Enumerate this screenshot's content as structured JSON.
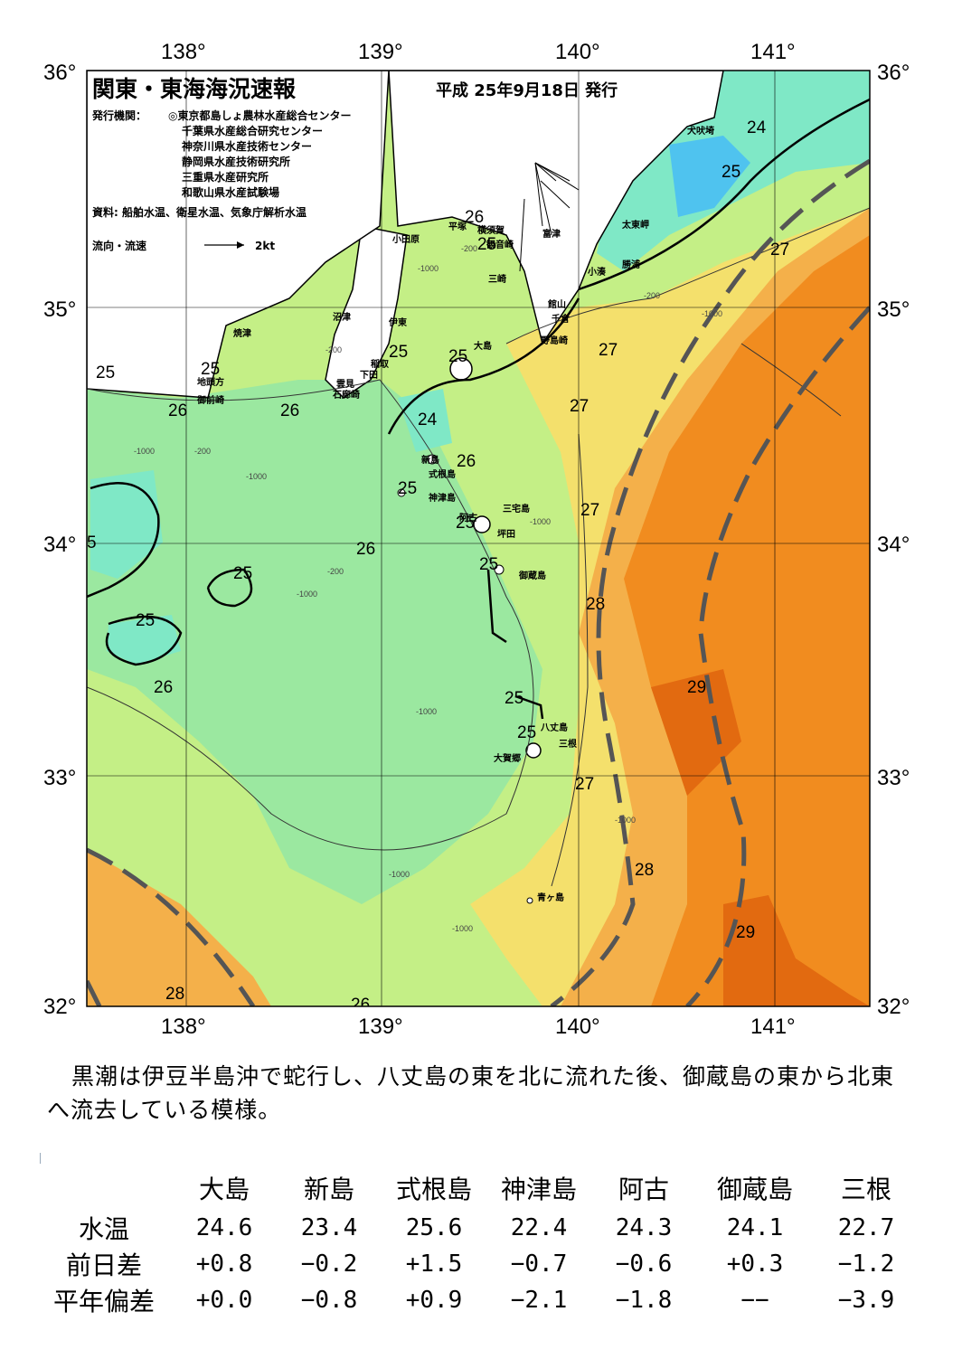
{
  "header": {
    "title": "関東・東海海況速報",
    "date": "平成 25年9月18日 発行",
    "issuer_label": "発行機関：",
    "issuers": [
      "◎東京都島しょ農林水産総合センター",
      "千葉県水産総合研究センター",
      "神奈川県水産技術センター",
      "静岡県水産技術研究所",
      "三重県水産研究所",
      "和歌山県水産試験場"
    ],
    "source": "資料: 船舶水温、衛星水温、気象庁解析水温",
    "legend_label": "流向・流速",
    "legend_scale": "2kt"
  },
  "axes": {
    "lon_top": [
      "138°",
      "139°",
      "140°",
      "141°"
    ],
    "lon_bottom": [
      "138°",
      "139°",
      "140°",
      "141°"
    ],
    "lat_left": [
      "36°",
      "35°",
      "34°",
      "33°",
      "32°"
    ],
    "lat_right": [
      "36°",
      "35°",
      "34°",
      "33°",
      "32°"
    ]
  },
  "map": {
    "extent": {
      "lon_min": 137.5,
      "lon_max": 141.5,
      "lat_min": 32.0,
      "lat_max": 36.0
    },
    "colors": {
      "sea_22": "#4fc3ef",
      "sea_23": "#7fdcff",
      "sea_24": "#7fe8c6",
      "sea_25": "#9be8a0",
      "sea_26": "#c4ef86",
      "sea_27": "#f4e06c",
      "sea_28": "#f4b04a",
      "sea_29": "#f18c1f",
      "sea_30": "#e26a10",
      "land": "#ffffff",
      "kuroshio_axis": "#555555"
    },
    "isotherm_labels": [
      "24",
      "25",
      "26",
      "27",
      "28",
      "29",
      "5"
    ],
    "depth_labels": [
      "-200",
      "-1000"
    ],
    "place_names": [
      "犬吠埼",
      "太東岬",
      "勝浦",
      "小湊",
      "館山",
      "千倉",
      "野島崎",
      "富津",
      "観音崎",
      "横須賀",
      "三崎",
      "平塚",
      "小田原",
      "沼津",
      "伊東",
      "稲取",
      "下田",
      "雲見",
      "石廊崎",
      "焼津",
      "地頭方",
      "御前崎",
      "大島",
      "新島",
      "式根島",
      "神津島",
      "三宅島",
      "坪田",
      "阿古",
      "御蔵島",
      "八丈島",
      "三根",
      "大賀郷",
      "青ヶ島"
    ]
  },
  "summary": "黒潮は伊豆半島沖で蛇行し、八丈島の東を北に流れた後、御蔵島の東から北東へ流去している模様。",
  "table": {
    "columns": [
      "大島",
      "新島",
      "式根島",
      "神津島",
      "阿古",
      "御蔵島",
      "三根"
    ],
    "rows": [
      {
        "label": "水温",
        "values": [
          "24.6",
          "23.4",
          "25.6",
          "22.4",
          "24.3",
          "24.1",
          "22.7"
        ]
      },
      {
        "label": "前日差",
        "values": [
          "+0.8",
          "−0.2",
          "+1.5",
          "−0.7",
          "−0.6",
          "+0.3",
          "−1.2"
        ]
      },
      {
        "label": "平年偏差",
        "values": [
          "+0.0",
          "−0.8",
          "+0.9",
          "−2.1",
          "−1.8",
          "−−",
          "−3.9"
        ]
      }
    ]
  }
}
